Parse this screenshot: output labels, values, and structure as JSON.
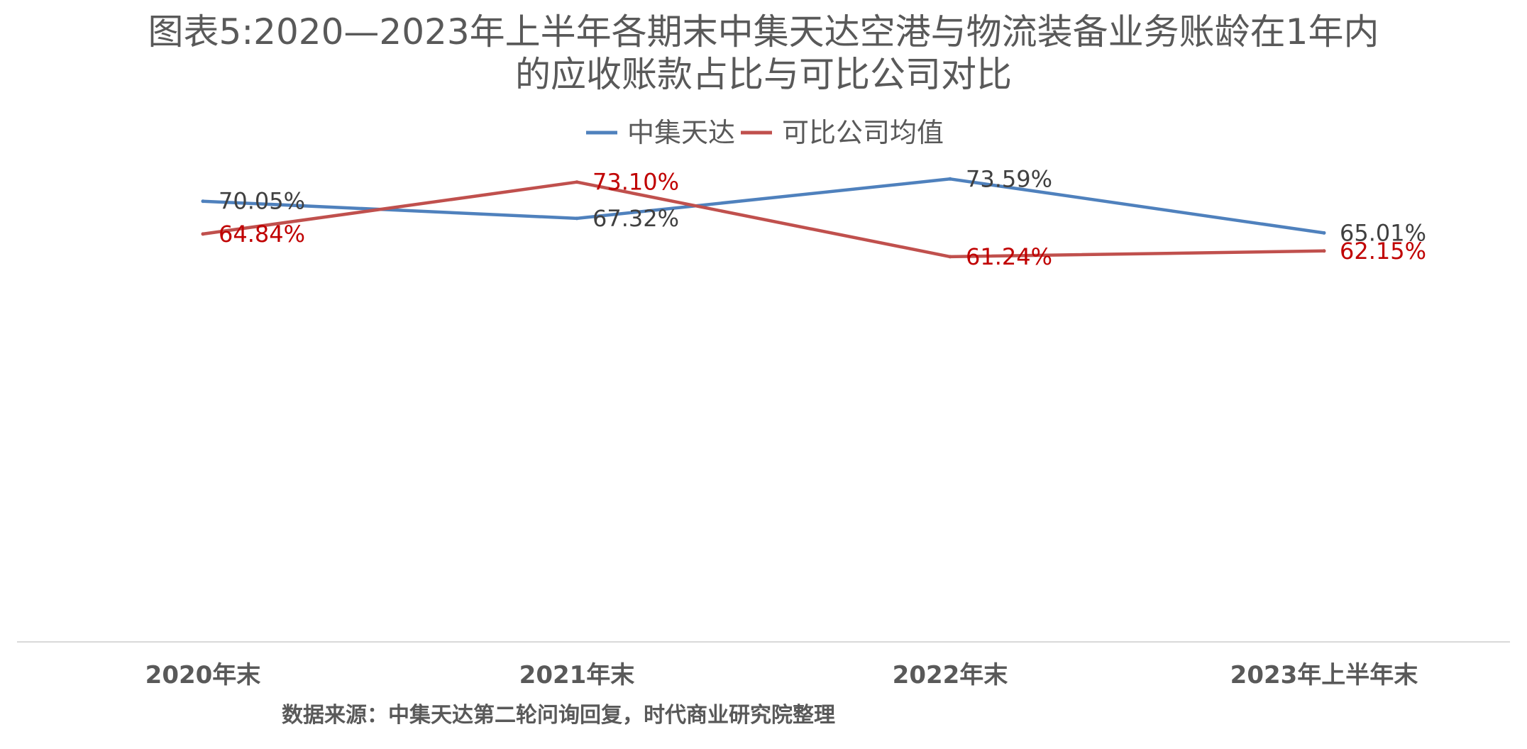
{
  "chart_data": {
    "type": "line",
    "title_line1": "图表5:2020—2023年上半年各期末中集天达空港与物流装备业务账龄在1年内",
    "title_line2": "的应收账款占比与可比公司对比",
    "categories": [
      "2020年末",
      "2021年末",
      "2022年末",
      "2023年上半年末"
    ],
    "series": [
      {
        "name": "中集天达",
        "values": [
          70.05,
          67.32,
          73.59,
          65.01
        ],
        "labels": [
          "70.05%",
          "67.32%",
          "73.59%",
          "65.01%"
        ],
        "color": "#4f81bd",
        "label_color": "#404040"
      },
      {
        "name": "可比公司均值",
        "values": [
          64.84,
          73.1,
          61.24,
          62.15
        ],
        "labels": [
          "64.84%",
          "73.10%",
          "61.24%",
          "62.15%"
        ],
        "color": "#c0504d",
        "label_color": "#c00000"
      }
    ],
    "ylim": [
      0,
      84
    ],
    "legend_position": "top",
    "grid": false,
    "source": "数据来源：中集天达第二轮问询回复，时代商业研究院整理"
  }
}
